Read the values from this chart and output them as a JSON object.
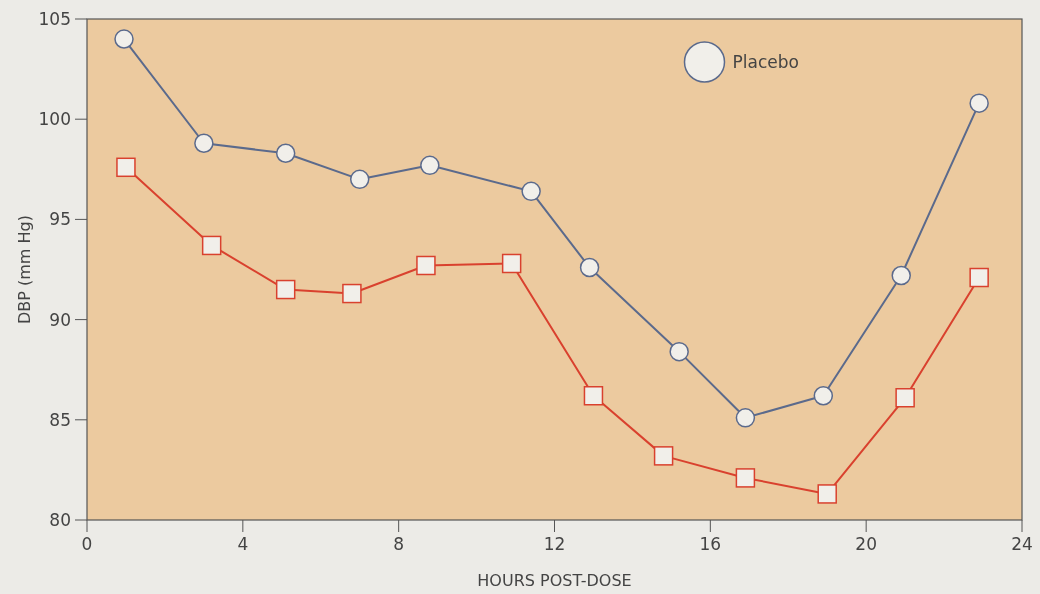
{
  "chart_data": {
    "type": "line",
    "xlabel": "HOURS POST-DOSE",
    "ylabel": "DBP (mm Hg)",
    "xlim": [
      0,
      24
    ],
    "xticks": [
      0,
      4,
      8,
      12,
      16,
      20,
      24
    ],
    "ylim": [
      80,
      105
    ],
    "yticks": [
      80,
      85,
      90,
      95,
      100,
      105
    ],
    "legend": "top",
    "grid": false,
    "series": [
      {
        "color": "#d9412e",
        "marker": "square",
        "x": [
          1.0,
          3.2,
          5.1,
          6.8,
          8.7,
          10.9,
          13.0,
          14.8,
          16.9,
          19.0,
          21.0,
          22.9
        ],
        "values": [
          97.6,
          93.7,
          91.5,
          91.3,
          92.7,
          92.8,
          86.2,
          83.2,
          82.1,
          81.3,
          86.1,
          92.1
        ]
      },
      {
        "name": "Placebo",
        "color": "#5b6a8c",
        "marker": "circle",
        "x": [
          0.95,
          3.0,
          5.1,
          7.0,
          8.8,
          11.4,
          12.9,
          15.2,
          16.9,
          18.9,
          20.9,
          22.9
        ],
        "values": [
          104.0,
          98.8,
          98.3,
          97.0,
          97.7,
          96.4,
          92.6,
          88.4,
          85.1,
          86.2,
          92.2,
          100.8
        ]
      }
    ]
  }
}
